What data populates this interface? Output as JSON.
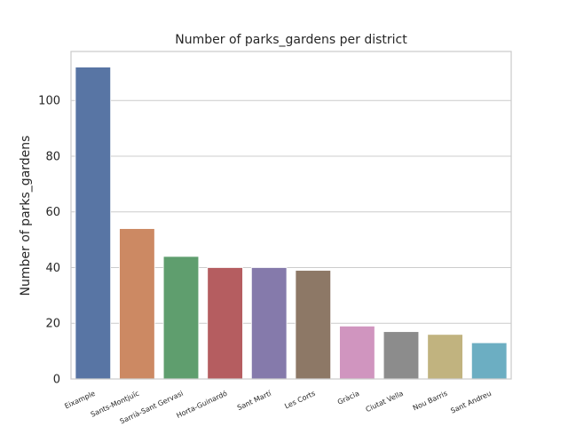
{
  "chart_data": {
    "type": "bar",
    "title": "Number of parks_gardens per district",
    "xlabel": "",
    "ylabel": "Number of parks_gardens",
    "categories": [
      "Eixample",
      "Sants-Montjuïc",
      "Sarrià-Sant Gervasi",
      "Horta-Guinardó",
      "Sant Martí",
      "Les Corts",
      "Gràcia",
      "Ciutat Vella",
      "Nou Barris",
      "Sant Andreu"
    ],
    "values": [
      112,
      54,
      44,
      40,
      40,
      39,
      19,
      17,
      16,
      13
    ],
    "colors": [
      "#5875a4",
      "#cc8963",
      "#5f9e6e",
      "#b55d60",
      "#857aab",
      "#8d7866",
      "#d095bf",
      "#8c8c8c",
      "#c1b37f",
      "#6caec2"
    ],
    "ylim": [
      0,
      117.6
    ],
    "yticks": [
      0,
      20,
      40,
      60,
      80,
      100
    ],
    "grid": true,
    "legend": "none"
  }
}
